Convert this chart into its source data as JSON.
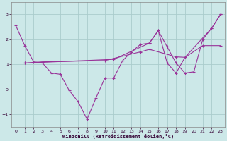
{
  "background_color": "#cce8e8",
  "grid_color": "#aacccc",
  "line_color": "#993399",
  "xlabel": "Windchill (Refroidissement éolien,°C)",
  "ylim": [
    -1.5,
    3.5
  ],
  "xlim": [
    -0.5,
    23.5
  ],
  "yticks": [
    -1,
    0,
    1,
    2,
    3
  ],
  "xticks": [
    0,
    1,
    2,
    3,
    4,
    5,
    6,
    7,
    8,
    9,
    10,
    11,
    12,
    13,
    14,
    15,
    16,
    17,
    18,
    19,
    20,
    21,
    22,
    23
  ],
  "series1_x": [
    0,
    1,
    2,
    3,
    4,
    5,
    6,
    7,
    8,
    9,
    10,
    11,
    12,
    13,
    14,
    15,
    16,
    17,
    18,
    19,
    20,
    21,
    22,
    23
  ],
  "series1_y": [
    2.55,
    1.75,
    1.1,
    1.05,
    0.65,
    0.6,
    -0.05,
    -0.5,
    -1.2,
    -0.35,
    0.45,
    0.45,
    1.15,
    1.5,
    1.8,
    1.85,
    2.35,
    1.7,
    1.05,
    0.65,
    0.7,
    2.0,
    2.45,
    3.0
  ],
  "series2_x": [
    1,
    3,
    10,
    14,
    15,
    18,
    19,
    21,
    23
  ],
  "series2_y": [
    1.05,
    1.1,
    1.15,
    1.5,
    1.6,
    1.3,
    1.28,
    1.75,
    1.75
  ],
  "series3_x": [
    1,
    11,
    15,
    16,
    17,
    18,
    19,
    22,
    23
  ],
  "series3_y": [
    1.05,
    1.2,
    1.85,
    2.35,
    1.05,
    0.65,
    1.28,
    2.45,
    3.0
  ]
}
